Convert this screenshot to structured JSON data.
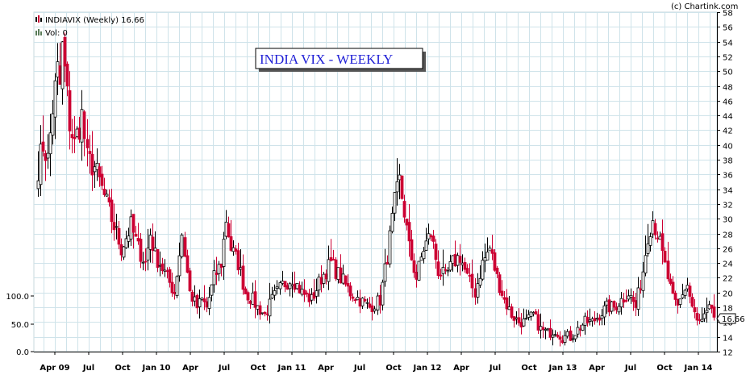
{
  "colors": {
    "up": "#000000",
    "down": "#cc0033",
    "grid": "#cfe3ea",
    "title": "#1f1fd6"
  },
  "chart_data": {
    "type": "candlestick",
    "symbol_label": "INDIAVIX (Weekly) 16.66",
    "volume_label": "Vol: 0",
    "title": "INDIA VIX - WEEKLY",
    "credit": "(c) Chartink.com",
    "last_value": "16.66",
    "price_axis": {
      "min": 12,
      "max": 58,
      "step": 2,
      "position": "right",
      "ticks": [
        "12",
        "14",
        "16",
        "18",
        "20",
        "22",
        "24",
        "26",
        "28",
        "30",
        "32",
        "34",
        "36",
        "38",
        "40",
        "42",
        "44",
        "46",
        "48",
        "50",
        "52",
        "54",
        "56",
        "58"
      ]
    },
    "volume_axis": {
      "position": "left",
      "ticks": [
        "0.0",
        "50.0",
        "100.0"
      ]
    },
    "x_axis": {
      "start": "2009-02",
      "ticks": [
        {
          "label": "Apr 09",
          "month": 2
        },
        {
          "label": "Jul",
          "month": 5
        },
        {
          "label": "Oct",
          "month": 8
        },
        {
          "label": "Jan 10",
          "month": 11
        },
        {
          "label": "Apr",
          "month": 14
        },
        {
          "label": "Jul",
          "month": 17
        },
        {
          "label": "Oct",
          "month": 20
        },
        {
          "label": "Jan 11",
          "month": 23
        },
        {
          "label": "Apr",
          "month": 26
        },
        {
          "label": "Jul",
          "month": 29
        },
        {
          "label": "Oct",
          "month": 32
        },
        {
          "label": "Jan 12",
          "month": 35
        },
        {
          "label": "Apr",
          "month": 38
        },
        {
          "label": "Jul",
          "month": 41
        },
        {
          "label": "Oct",
          "month": 44
        },
        {
          "label": "Jan 13",
          "month": 47
        },
        {
          "label": "Apr",
          "month": 50
        },
        {
          "label": "Jul",
          "month": 53
        },
        {
          "label": "Oct",
          "month": 56
        },
        {
          "label": "Jan 14",
          "month": 59
        }
      ]
    },
    "grid": true,
    "anchors": [
      [
        0,
        37
      ],
      [
        2,
        40
      ],
      [
        4,
        38
      ],
      [
        6,
        45
      ],
      [
        8,
        50
      ],
      [
        9,
        48
      ],
      [
        10,
        53
      ],
      [
        11,
        50
      ],
      [
        13,
        43
      ],
      [
        15,
        40
      ],
      [
        18,
        44
      ],
      [
        20,
        38
      ],
      [
        23,
        37
      ],
      [
        26,
        34
      ],
      [
        30,
        30
      ],
      [
        34,
        26
      ],
      [
        38,
        29
      ],
      [
        41,
        26
      ],
      [
        44,
        24
      ],
      [
        46,
        28
      ],
      [
        48,
        25
      ],
      [
        50,
        24
      ],
      [
        53,
        22
      ],
      [
        56,
        20
      ],
      [
        59,
        28
      ],
      [
        62,
        20
      ],
      [
        65,
        18
      ],
      [
        67,
        19
      ],
      [
        69,
        18
      ],
      [
        72,
        22
      ],
      [
        75,
        24
      ],
      [
        77,
        30
      ],
      [
        79,
        26
      ],
      [
        82,
        24
      ],
      [
        85,
        20
      ],
      [
        88,
        19
      ],
      [
        90,
        18
      ],
      [
        93,
        17
      ],
      [
        96,
        19
      ],
      [
        100,
        21
      ],
      [
        104,
        22
      ],
      [
        108,
        20
      ],
      [
        112,
        19
      ],
      [
        116,
        22
      ],
      [
        120,
        24
      ],
      [
        124,
        22
      ],
      [
        128,
        20
      ],
      [
        132,
        19
      ],
      [
        136,
        18
      ],
      [
        140,
        19
      ],
      [
        143,
        25
      ],
      [
        146,
        32
      ],
      [
        148,
        35
      ],
      [
        150,
        31
      ],
      [
        152,
        26
      ],
      [
        155,
        22
      ],
      [
        158,
        26
      ],
      [
        161,
        28
      ],
      [
        164,
        23
      ],
      [
        167,
        22
      ],
      [
        170,
        24
      ],
      [
        173,
        25
      ],
      [
        176,
        22
      ],
      [
        179,
        20
      ],
      [
        182,
        24
      ],
      [
        185,
        26
      ],
      [
        188,
        22
      ],
      [
        191,
        19
      ],
      [
        194,
        17
      ],
      [
        197,
        16
      ],
      [
        200,
        16
      ],
      [
        203,
        17
      ],
      [
        206,
        15
      ],
      [
        209,
        14.5
      ],
      [
        212,
        15
      ],
      [
        215,
        14
      ],
      [
        218,
        14
      ],
      [
        221,
        15
      ],
      [
        224,
        16
      ],
      [
        227,
        16
      ],
      [
        230,
        17
      ],
      [
        233,
        18
      ],
      [
        236,
        18
      ],
      [
        239,
        19
      ],
      [
        242,
        20
      ],
      [
        245,
        18
      ],
      [
        248,
        23
      ],
      [
        250,
        28
      ],
      [
        252,
        30
      ],
      [
        254,
        28
      ],
      [
        256,
        25
      ],
      [
        258,
        22
      ],
      [
        260,
        19
      ],
      [
        262,
        18
      ],
      [
        264,
        20
      ],
      [
        266,
        21
      ],
      [
        268,
        18
      ],
      [
        270,
        16
      ],
      [
        272,
        16
      ],
      [
        274,
        17
      ],
      [
        276,
        18
      ],
      [
        277,
        16.66
      ]
    ]
  }
}
